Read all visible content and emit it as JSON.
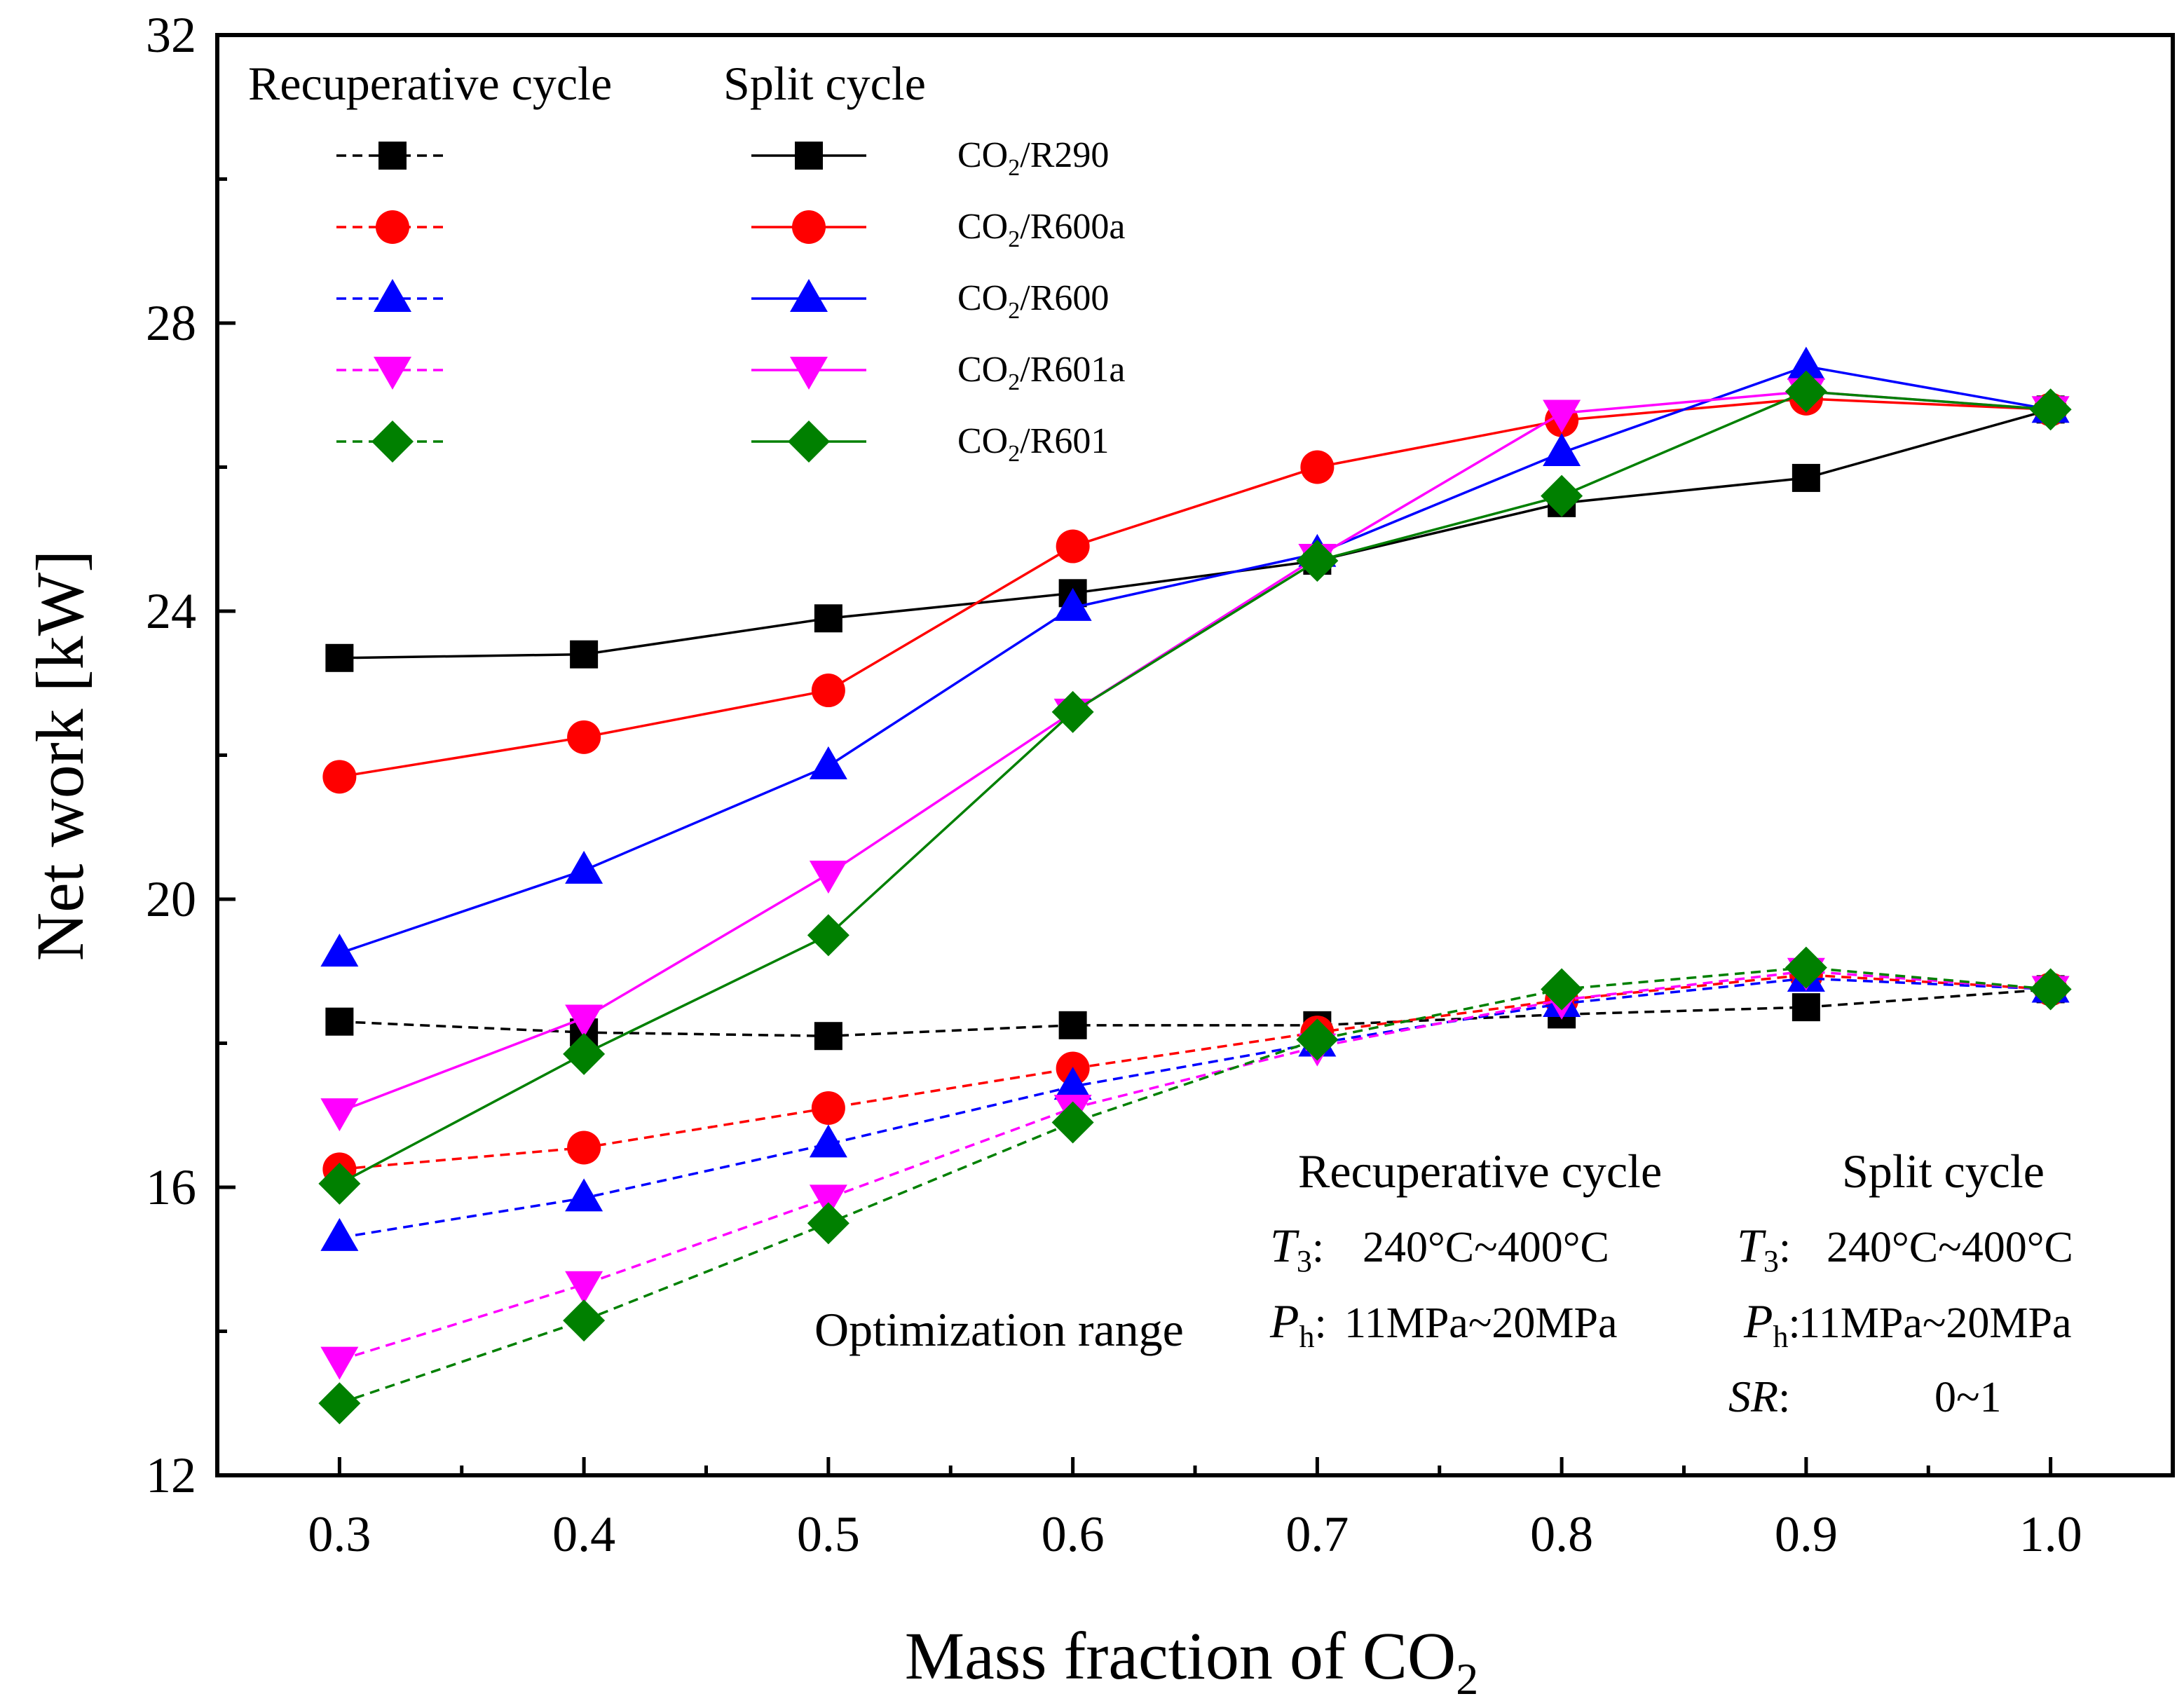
{
  "chart_data": {
    "type": "line",
    "xlabel_main": "Mass fraction of CO",
    "xlabel_sub": "2",
    "ylabel": "Net work [kW]",
    "xlim": [
      0.25,
      1.05
    ],
    "ylim": [
      12,
      32
    ],
    "x": [
      0.3,
      0.4,
      0.5,
      0.6,
      0.7,
      0.8,
      0.9,
      1.0
    ],
    "x_ticks": [
      "0.3",
      "0.4",
      "0.5",
      "0.6",
      "0.7",
      "0.8",
      "0.9",
      "1.0"
    ],
    "y_ticks": [
      12,
      16,
      20,
      24,
      28,
      32
    ],
    "legend": {
      "header_recuperative": "Recuperative cycle",
      "header_split": "Split cycle",
      "entries": [
        {
          "prefix": "CO",
          "sub": "2",
          "suffix": "/R290"
        },
        {
          "prefix": "CO",
          "sub": "2",
          "suffix": "/R600a"
        },
        {
          "prefix": "CO",
          "sub": "2",
          "suffix": "/R600"
        },
        {
          "prefix": "CO",
          "sub": "2",
          "suffix": "/R601a"
        },
        {
          "prefix": "CO",
          "sub": "2",
          "suffix": "/R601"
        }
      ]
    },
    "series": [
      {
        "name": "Split cycle CO2/R290",
        "cycle": "split",
        "color": "#000000",
        "marker": "square",
        "values": [
          23.35,
          23.4,
          23.9,
          24.25,
          24.7,
          25.5,
          25.85,
          26.8
        ]
      },
      {
        "name": "Split cycle CO2/R600a",
        "cycle": "split",
        "color": "#ff0000",
        "marker": "circle",
        "values": [
          21.7,
          22.25,
          22.9,
          24.9,
          26.0,
          26.65,
          26.95,
          26.8
        ]
      },
      {
        "name": "Split cycle CO2/R600",
        "cycle": "split",
        "color": "#0000ff",
        "marker": "triangle-up",
        "values": [
          19.25,
          20.4,
          21.85,
          24.05,
          24.8,
          26.2,
          27.4,
          26.8
        ]
      },
      {
        "name": "Split cycle CO2/R601a",
        "cycle": "split",
        "color": "#ff00ff",
        "marker": "triangle-down",
        "values": [
          17.05,
          18.35,
          20.35,
          22.6,
          24.75,
          26.75,
          27.05,
          26.8
        ]
      },
      {
        "name": "Split cycle CO2/R601",
        "cycle": "split",
        "color": "#008000",
        "marker": "diamond",
        "values": [
          16.05,
          17.85,
          19.5,
          22.6,
          24.7,
          25.6,
          27.05,
          26.8
        ]
      },
      {
        "name": "Recuperative cycle CO2/R290",
        "cycle": "recuperative",
        "color": "#000000",
        "marker": "square",
        "values": [
          18.3,
          18.15,
          18.1,
          18.25,
          18.25,
          18.4,
          18.5,
          18.75
        ]
      },
      {
        "name": "Recuperative cycle CO2/R600a",
        "cycle": "recuperative",
        "color": "#ff0000",
        "marker": "circle",
        "values": [
          16.25,
          16.55,
          17.1,
          17.65,
          18.15,
          18.6,
          18.95,
          18.75
        ]
      },
      {
        "name": "Recuperative cycle CO2/R600",
        "cycle": "recuperative",
        "color": "#0000ff",
        "marker": "triangle-up",
        "values": [
          15.3,
          15.85,
          16.6,
          17.4,
          18.0,
          18.55,
          18.9,
          18.75
        ]
      },
      {
        "name": "Recuperative cycle CO2/R601a",
        "cycle": "recuperative",
        "color": "#ff00ff",
        "marker": "triangle-down",
        "values": [
          13.6,
          14.65,
          15.85,
          17.1,
          17.95,
          18.6,
          19.0,
          18.75
        ]
      },
      {
        "name": "Recuperative cycle CO2/R601",
        "cycle": "recuperative",
        "color": "#008000",
        "marker": "diamond",
        "values": [
          13.0,
          14.15,
          15.5,
          16.9,
          18.05,
          18.75,
          19.05,
          18.75
        ]
      }
    ],
    "annotation": {
      "col1_header": "Recuperative cycle",
      "col2_header": "Split cycle",
      "range_label": "Optimization range",
      "t3_symbol": "T",
      "t3_sub": "3",
      "t3_colon": ":",
      "t3_range": "240°C~400°C",
      "ph_symbol": "P",
      "ph_sub": "h",
      "ph_colon": ":",
      "ph_range": "11MPa~20MPa",
      "sr_symbol": "SR",
      "sr_colon": ":",
      "sr_range": "0~1"
    }
  }
}
